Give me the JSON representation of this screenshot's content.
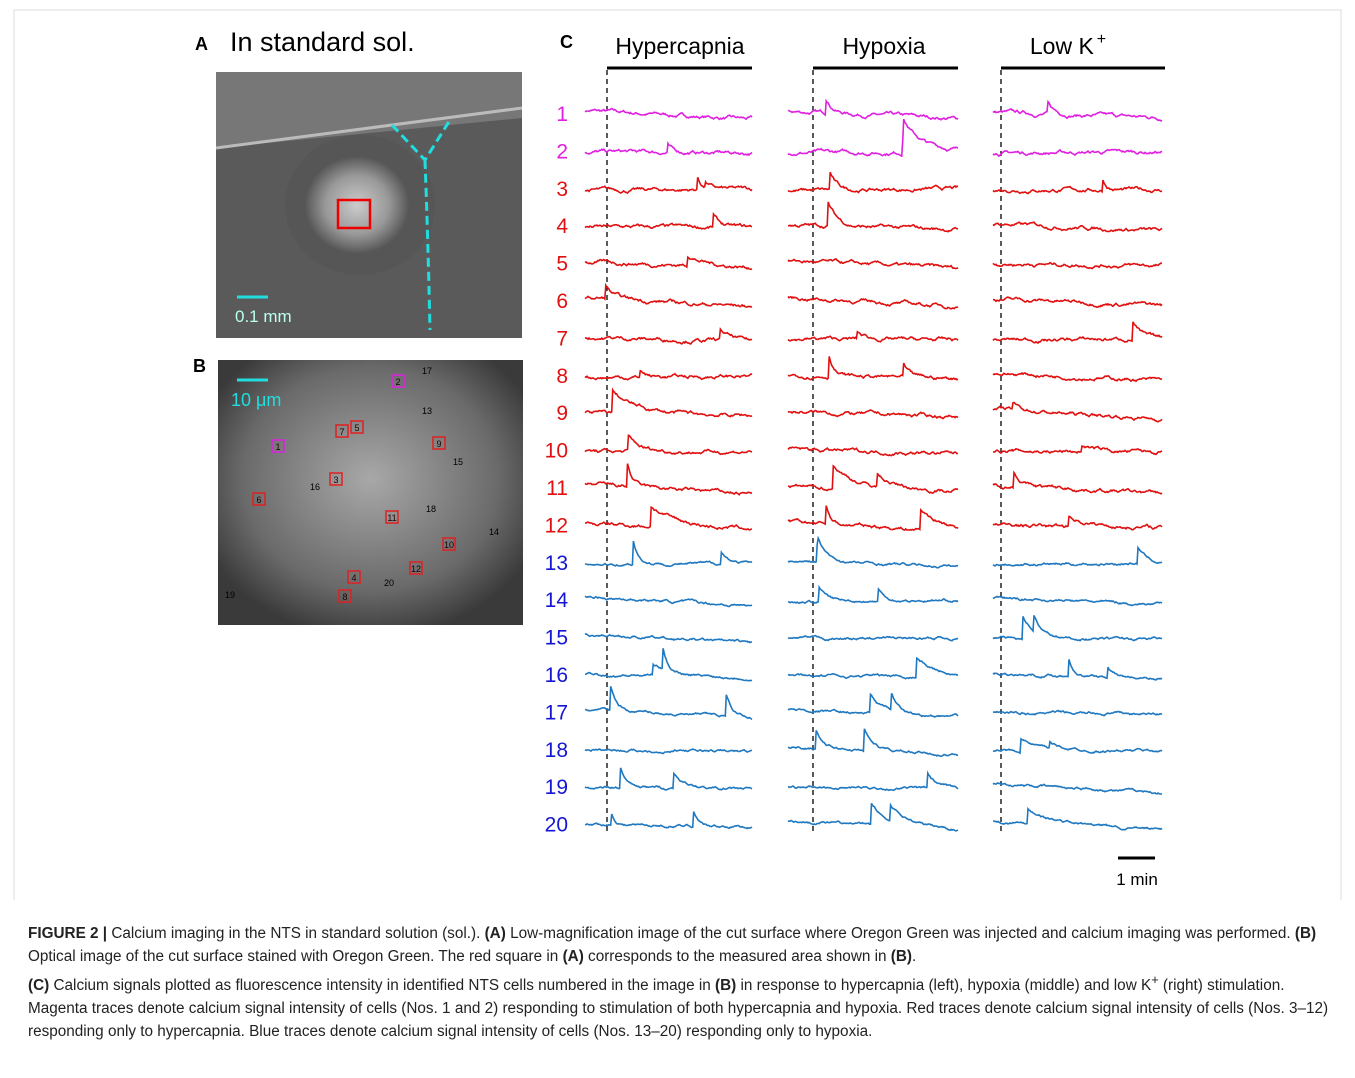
{
  "panel_a": {
    "label": "A",
    "title": "In standard sol.",
    "scale_bar": "0.1 mm"
  },
  "panel_b": {
    "label": "B",
    "scale_bar": "10 μm",
    "cells": [
      "1",
      "2",
      "3",
      "4",
      "5",
      "6",
      "7",
      "8",
      "9",
      "10",
      "11",
      "12",
      "13",
      "14",
      "15",
      "16",
      "17",
      "18",
      "19",
      "20"
    ]
  },
  "panel_c": {
    "label": "C",
    "stimuli": [
      {
        "text": "Hypercapnia"
      },
      {
        "text": "Hypoxia"
      },
      {
        "text": "Low K",
        "sup": "+"
      }
    ],
    "rows": [
      "1",
      "2",
      "3",
      "4",
      "5",
      "6",
      "7",
      "8",
      "9",
      "10",
      "11",
      "12",
      "13",
      "14",
      "15",
      "16",
      "17",
      "18",
      "19",
      "20"
    ],
    "scale_bar": "1 min"
  },
  "caption": {
    "label": "FIGURE 2 |",
    "runs": [
      "Calcium imaging in the NTS in standard solution (sol.). ",
      "(A)",
      " Low-magnification image of the cut surface where Oregon Green was injected and calcium imaging was performed. ",
      "(B)",
      " Optical image of the cut surface stained with Oregon Green. The red square in ",
      "(A)",
      " corresponds to the measured area shown in ",
      "(B)",
      ".",
      "(C)",
      " Calcium signals plotted as fluorescence intensity in identified NTS cells numbered in the image in ",
      "(B)",
      " in response to hypercapnia (left), hypoxia (middle) and low K",
      "+",
      " (right) stimulation. Magenta traces denote calcium signal intensity of cells (Nos. 1 and 2) responding to stimulation of both hypercapnia and hypoxia. Red traces denote calcium signal intensity of cells (Nos. 3–12) responding only to hypercapnia. Blue traces denote calcium signal intensity of cells (Nos. 13–20) responding only to hypoxia."
    ]
  }
}
